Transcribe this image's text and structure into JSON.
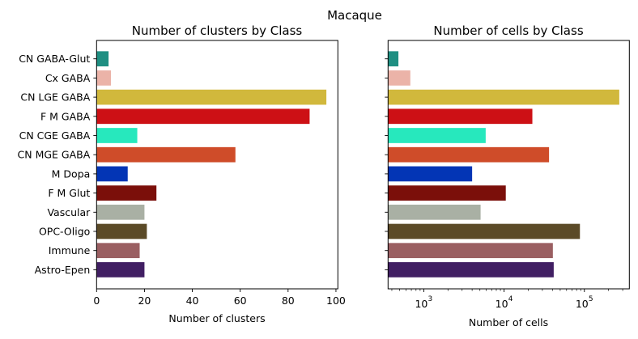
{
  "chart_data": [
    {
      "type": "bar",
      "orientation": "horizontal",
      "suptitle": "Macaque",
      "title": "Number of clusters by Class",
      "xlabel": "Number of clusters",
      "ylabel": "",
      "xscale": "linear",
      "xlim": [
        0,
        100.8
      ],
      "xticks": [
        0,
        20,
        40,
        60,
        80,
        100
      ],
      "xtick_labels": [
        "0",
        "20",
        "40",
        "60",
        "80",
        "100"
      ],
      "categories": [
        "CN GABA-Glut",
        "Cx GABA",
        "CN LGE GABA",
        "F M GABA",
        "CN CGE GABA",
        "CN MGE GABA",
        "M Dopa",
        "F M Glut",
        "Vascular",
        "OPC-Oligo",
        "Immune",
        "Astro-Epen"
      ],
      "values": [
        5,
        6,
        96,
        89,
        17,
        58,
        13,
        25,
        20,
        21,
        18,
        20
      ],
      "colors": [
        "#1f8f82",
        "#ebb3a8",
        "#d1b83c",
        "#cd1015",
        "#27e8bd",
        "#cf4c29",
        "#0335b5",
        "#7b0f0a",
        "#a9b0a4",
        "#5b4a27",
        "#9a5f62",
        "#411f63"
      ]
    },
    {
      "type": "bar",
      "orientation": "horizontal",
      "title": "Number of cells by Class",
      "xlabel": "Number of cells",
      "ylabel": "",
      "xscale": "log",
      "xlim": [
        359,
        363000
      ],
      "xticks": [
        1000,
        10000,
        100000
      ],
      "xtick_labels": [
        {
          "base": "10",
          "exp": "3"
        },
        {
          "base": "10",
          "exp": "4"
        },
        {
          "base": "10",
          "exp": "5"
        }
      ],
      "categories": [
        "CN GABA-Glut",
        "Cx GABA",
        "CN LGE GABA",
        "F M GABA",
        "CN CGE GABA",
        "CN MGE GABA",
        "M Dopa",
        "F M Glut",
        "Vascular",
        "OPC-Oligo",
        "Immune",
        "Astro-Epen"
      ],
      "values": [
        483,
        680,
        272000,
        22500,
        5900,
        36300,
        4000,
        10500,
        5100,
        88000,
        40500,
        41500
      ],
      "colors": [
        "#1f8f82",
        "#ebb3a8",
        "#d1b83c",
        "#cd1015",
        "#27e8bd",
        "#cf4c29",
        "#0335b5",
        "#7b0f0a",
        "#a9b0a4",
        "#5b4a27",
        "#9a5f62",
        "#411f63"
      ]
    }
  ]
}
